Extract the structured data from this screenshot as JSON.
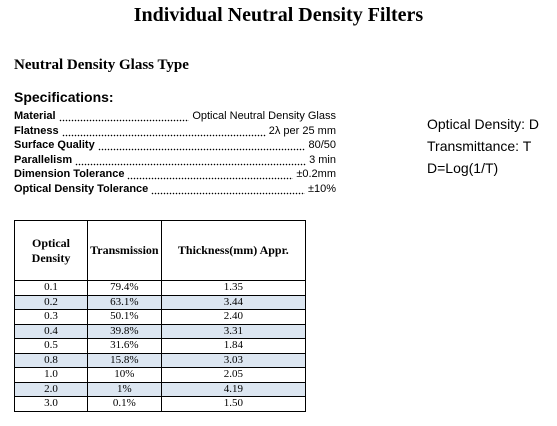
{
  "header": {
    "title": "Individual Neutral Density Filters"
  },
  "section": {
    "title": "Neutral Density Glass Type"
  },
  "specifications": {
    "title": "Specifications:",
    "rows": [
      [
        "Material",
        "Optical Neutral Density Glass"
      ],
      [
        "Flatness",
        "2λ per 25 mm"
      ],
      [
        "Surface Quality",
        "80/50"
      ],
      [
        "Parallelism",
        "3 min"
      ],
      [
        "Dimension Tolerance",
        "±0.2mm"
      ],
      [
        "Optical Density Tolerance",
        "±10%"
      ]
    ]
  },
  "notes": [
    "Optical Density: D",
    "Transmittance: T",
    "D=Log(1/T)"
  ],
  "table": {
    "headers": [
      "Optical Density",
      "Transmission",
      "Thickness(mm) Appr."
    ],
    "rows": [
      [
        "0.1",
        "79.4%",
        "1.35"
      ],
      [
        "0.2",
        "63.1%",
        "3.44"
      ],
      [
        "0.3",
        "50.1%",
        "2.40"
      ],
      [
        "0.4",
        "39.8%",
        "3.31"
      ],
      [
        "0.5",
        "31.6%",
        "1.84"
      ],
      [
        "0.8",
        "15.8%",
        "3.03"
      ],
      [
        "1.0",
        "10%",
        "2.05"
      ],
      [
        "2.0",
        "1%",
        "4.19"
      ],
      [
        "3.0",
        "0.1%",
        "1.50"
      ]
    ]
  }
}
